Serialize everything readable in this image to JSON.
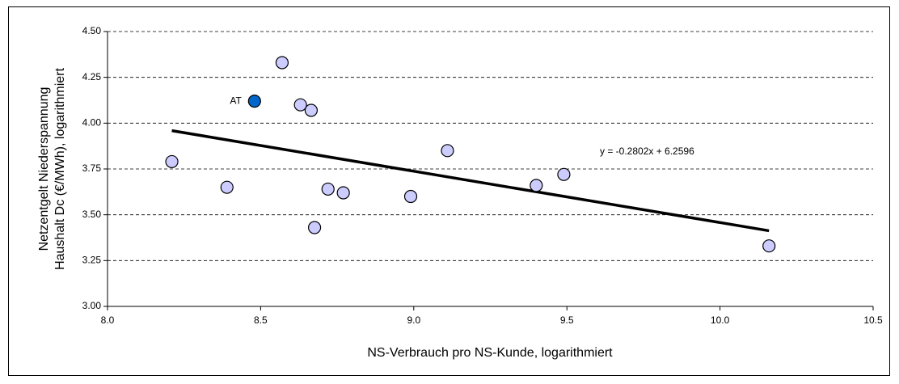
{
  "chart_data": {
    "type": "scatter",
    "y_label_lines": [
      "Netzentgelt Niederspannung",
      "Haushalt Dc (€/MWh), logarithmiert"
    ],
    "x_label": "NS-Verbrauch pro NS-Kunde, logarithmiert",
    "x": [
      8.21,
      8.39,
      8.57,
      8.63,
      8.665,
      8.676,
      8.72,
      8.77,
      8.99,
      9.11,
      9.4,
      9.49,
      10.16
    ],
    "y": [
      3.79,
      3.65,
      4.33,
      4.1,
      4.07,
      3.43,
      3.64,
      3.62,
      3.6,
      3.85,
      3.66,
      3.72,
      3.33
    ],
    "color": "#ccccff",
    "highlight": {
      "x": 8.48,
      "y": 4.12,
      "label": "AT",
      "color": "#0066cc"
    },
    "trendline": {
      "label": "y = -0.2802x + 6.2596",
      "slope": -0.2802,
      "intercept": 6.2596,
      "color": "#000000"
    },
    "xlim": [
      8.0,
      10.5
    ],
    "xticks": [
      {
        "value": 8.0,
        "label": "8.0"
      },
      8.5,
      {
        "value": 9.0,
        "label": "9.0"
      },
      9.5,
      {
        "value": 10.0,
        "label": "10.0"
      },
      10.5
    ],
    "ylim": [
      3.0,
      4.5
    ],
    "yticks": [
      {
        "value": 3.0,
        "label": "3.00"
      },
      {
        "value": 3.25,
        "label": "3.25"
      },
      {
        "value": 3.5,
        "label": "3.50"
      },
      {
        "value": 3.75,
        "label": "3.75"
      },
      {
        "value": 4.0,
        "label": "4.00"
      },
      {
        "value": 4.25,
        "label": "4.25"
      },
      {
        "value": 4.5,
        "label": "4.50"
      }
    ],
    "grid": true
  }
}
